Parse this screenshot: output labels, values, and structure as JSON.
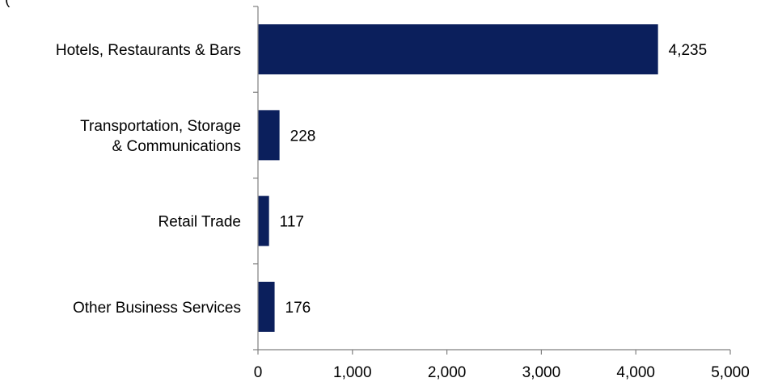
{
  "title_fragment": "(",
  "chart_data": {
    "type": "bar",
    "orientation": "horizontal",
    "categories": [
      [
        "Hotels, Restaurants & Bars"
      ],
      [
        "Transportation, Storage",
        "& Communications"
      ],
      [
        "Retail Trade"
      ],
      [
        "Other Business Services"
      ]
    ],
    "values": [
      4235,
      228,
      117,
      176
    ],
    "value_labels": [
      "4,235",
      "228",
      "117",
      "176"
    ],
    "xlim": [
      0,
      5000
    ],
    "x_ticks": [
      0,
      1000,
      2000,
      3000,
      4000,
      5000
    ],
    "x_tick_labels": [
      "0",
      "1,000",
      "2,000",
      "3,000",
      "4,000",
      "5,000"
    ],
    "grid": false,
    "bar_color": "#0b1f5c",
    "axis_color": "#808080"
  }
}
